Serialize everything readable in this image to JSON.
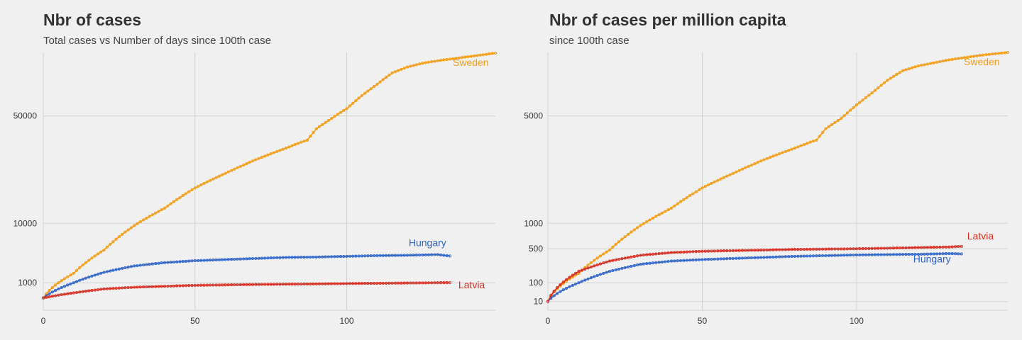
{
  "colors": {
    "background": "#f0f0f0",
    "grid": "#d2d2d2",
    "Sweden": "#f39c12",
    "Hungary": "#2e64c8",
    "Latvia": "#d62d20"
  },
  "chart_data": [
    {
      "type": "line",
      "title": "Nbr of cases",
      "subtitle": "Total cases vs Number of days since 100th case",
      "xlabel": "",
      "ylabel": "",
      "xlim": [
        0,
        149
      ],
      "ylim": [
        0,
        88000
      ],
      "x_ticks": [
        0,
        50,
        100
      ],
      "y_ticks": [
        1000,
        10000,
        50000
      ],
      "grid": true,
      "legend": "direct labels at line ends",
      "series": [
        {
          "name": "Sweden",
          "color": "#f39c12",
          "x": [
            0,
            10,
            20,
            30,
            40,
            50,
            55,
            60,
            65,
            70,
            75,
            80,
            85,
            87,
            90,
            95,
            100,
            105,
            110,
            115,
            120,
            125,
            130,
            140,
            149
          ],
          "y": [
            200,
            1800,
            4800,
            9500,
            13800,
            19800,
            22300,
            24800,
            27400,
            30000,
            32400,
            34800,
            37400,
            38300,
            43600,
            48700,
            53800,
            61000,
            67600,
            74600,
            78300,
            80800,
            82400,
            85100,
            87500
          ]
        },
        {
          "name": "Hungary",
          "color": "#2e64c8",
          "x": [
            0,
            10,
            20,
            30,
            40,
            50,
            60,
            70,
            80,
            90,
            100,
            110,
            120,
            130,
            134
          ],
          "y": [
            200,
            1000,
            1900,
            2600,
            3000,
            3250,
            3400,
            3550,
            3700,
            3750,
            3850,
            3950,
            4000,
            4100,
            3900
          ]
        },
        {
          "name": "Latvia",
          "color": "#d62d20",
          "x": [
            0,
            10,
            20,
            30,
            40,
            50,
            60,
            70,
            80,
            90,
            100,
            110,
            120,
            130,
            134
          ],
          "y": [
            200,
            400,
            600,
            700,
            760,
            820,
            850,
            880,
            900,
            920,
            940,
            960,
            980,
            1000,
            1010
          ]
        }
      ]
    },
    {
      "type": "line",
      "title": "Nbr of cases per million capita",
      "subtitle": "since 100th case",
      "xlabel": "",
      "ylabel": "",
      "xlim": [
        0,
        149
      ],
      "ylim": [
        0,
        8800
      ],
      "x_ticks": [
        0,
        50,
        100
      ],
      "y_ticks": [
        10,
        100,
        500,
        1000,
        5000
      ],
      "grid": true,
      "legend": "direct labels at line ends",
      "series": [
        {
          "name": "Sweden",
          "color": "#f39c12",
          "x": [
            0,
            10,
            20,
            30,
            40,
            50,
            55,
            60,
            65,
            70,
            75,
            80,
            85,
            87,
            90,
            95,
            100,
            105,
            110,
            115,
            120,
            125,
            130,
            140,
            149
          ],
          "y": [
            10,
            180,
            480,
            950,
            1380,
            1980,
            2230,
            2480,
            2740,
            3000,
            3240,
            3480,
            3740,
            3830,
            4360,
            4870,
            5580,
            6250,
            7000,
            7600,
            7900,
            8100,
            8300,
            8600,
            8800
          ]
        },
        {
          "name": "Hungary",
          "color": "#2e64c8",
          "x": [
            0,
            10,
            20,
            30,
            40,
            50,
            60,
            70,
            80,
            90,
            100,
            110,
            120,
            130,
            134
          ],
          "y": [
            10,
            100,
            200,
            280,
            320,
            340,
            355,
            370,
            385,
            395,
            405,
            410,
            415,
            425,
            420
          ]
        },
        {
          "name": "Latvia",
          "color": "#d62d20",
          "x": [
            0,
            10,
            20,
            30,
            40,
            50,
            60,
            70,
            80,
            90,
            100,
            110,
            120,
            130,
            134
          ],
          "y": [
            10,
            200,
            320,
            400,
            440,
            460,
            470,
            480,
            490,
            495,
            500,
            510,
            520,
            530,
            540
          ]
        }
      ]
    }
  ]
}
